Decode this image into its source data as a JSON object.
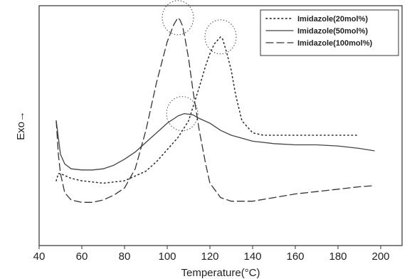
{
  "chart_data": {
    "type": "line",
    "title": "",
    "xlabel": "Temperature(°C)",
    "ylabel": "Exo→",
    "xlim": [
      40,
      210
    ],
    "ylim": [
      0,
      100
    ],
    "xticks": [
      40,
      60,
      80,
      100,
      120,
      140,
      160,
      180,
      200
    ],
    "grid": false,
    "legend_position": "top-right",
    "series": [
      {
        "name": "Imidazole(20mol%)",
        "style": "dotted",
        "color": "#333333",
        "x": [
          48,
          49,
          50,
          55,
          60,
          70,
          80,
          90,
          95,
          100,
          105,
          110,
          115,
          118,
          120,
          122,
          124,
          125,
          126,
          128,
          130,
          132,
          135,
          140,
          145,
          150,
          160,
          170,
          180,
          190
        ],
        "y": [
          27,
          30,
          30,
          28,
          27,
          26,
          27,
          31,
          35,
          40,
          45,
          52,
          66,
          75,
          80,
          84,
          86,
          87,
          86,
          80,
          73,
          63,
          52,
          47,
          46,
          46,
          46,
          46,
          46,
          46
        ]
      },
      {
        "name": "Imidazole(50mol%)",
        "style": "solid",
        "color": "#444444",
        "x": [
          48,
          50,
          52,
          55,
          60,
          65,
          70,
          75,
          80,
          85,
          90,
          95,
          100,
          105,
          108,
          112,
          115,
          120,
          125,
          130,
          140,
          150,
          160,
          170,
          180,
          190,
          197
        ],
        "y": [
          52,
          38,
          34,
          32,
          31.5,
          31.5,
          32,
          33.5,
          36,
          39,
          43,
          47,
          51,
          54,
          55,
          54.5,
          53,
          51,
          48,
          46,
          43.5,
          42.5,
          42,
          42,
          41.5,
          40.5,
          39.5
        ]
      },
      {
        "name": "Imidazole(100mol%)",
        "style": "dashed",
        "color": "#333333",
        "x": [
          48,
          49,
          50,
          52,
          55,
          60,
          65,
          70,
          75,
          80,
          85,
          90,
          95,
          100,
          103,
          105,
          106,
          107,
          108,
          110,
          112,
          115,
          118,
          120,
          125,
          130,
          140,
          150,
          160,
          170,
          180,
          190,
          197
        ],
        "y": [
          52,
          38,
          30,
          22,
          19,
          18,
          18,
          19,
          21,
          24,
          32,
          48,
          68,
          85,
          92,
          95,
          94,
          92,
          88,
          78,
          65,
          48,
          34,
          26,
          20,
          18.5,
          18.5,
          20,
          21.5,
          22.5,
          23.5,
          24.5,
          25
        ]
      }
    ],
    "annotations": [
      {
        "shape": "dotted-circle",
        "x": 105,
        "y": 95
      },
      {
        "shape": "dotted-circle",
        "x": 125,
        "y": 87
      },
      {
        "shape": "dotted-circle",
        "x": 107,
        "y": 55
      }
    ]
  }
}
